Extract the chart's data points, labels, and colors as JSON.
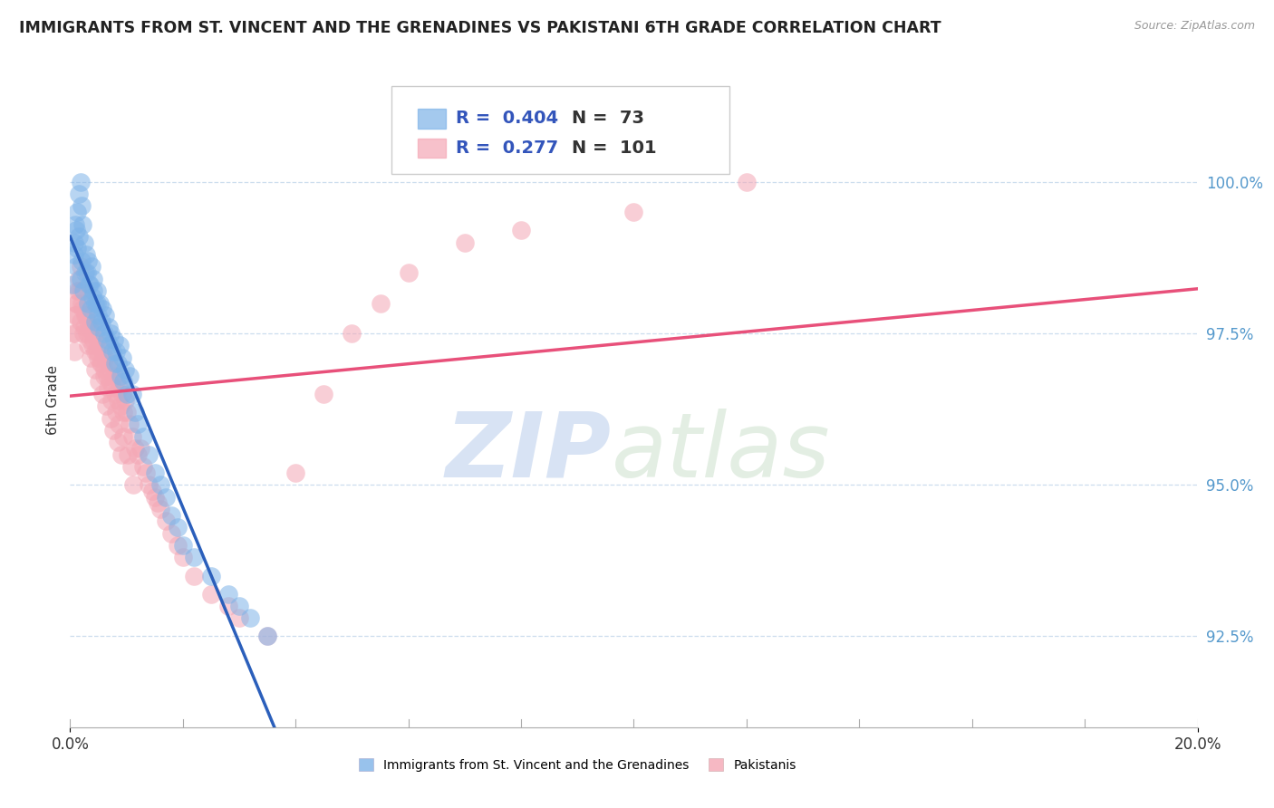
{
  "title": "IMMIGRANTS FROM ST. VINCENT AND THE GRENADINES VS PAKISTANI 6TH GRADE CORRELATION CHART",
  "source": "Source: ZipAtlas.com",
  "ylabel": "6th Grade",
  "y_ticks": [
    92.5,
    95.0,
    97.5,
    100.0
  ],
  "y_tick_labels": [
    "92.5%",
    "95.0%",
    "97.5%",
    "100.0%"
  ],
  "x_lim": [
    0.0,
    20.0
  ],
  "y_lim": [
    91.0,
    101.8
  ],
  "blue_color": "#7EB3E8",
  "blue_edge_color": "#5B9BD5",
  "pink_color": "#F4A7B5",
  "pink_edge_color": "#E87B9A",
  "blue_line_color": "#2B5FBB",
  "pink_line_color": "#E8507A",
  "legend_R_blue": "0.404",
  "legend_N_blue": "73",
  "legend_R_pink": "0.277",
  "legend_N_pink": "101",
  "legend_label_blue": "Immigrants from St. Vincent and the Grenadines",
  "legend_label_pink": "Pakistanis",
  "watermark_zip": "ZIP",
  "watermark_atlas": "atlas",
  "blue_x": [
    0.05,
    0.08,
    0.1,
    0.12,
    0.15,
    0.18,
    0.2,
    0.22,
    0.25,
    0.28,
    0.3,
    0.32,
    0.35,
    0.38,
    0.4,
    0.42,
    0.45,
    0.48,
    0.5,
    0.52,
    0.55,
    0.58,
    0.6,
    0.62,
    0.65,
    0.68,
    0.7,
    0.72,
    0.75,
    0.78,
    0.8,
    0.82,
    0.85,
    0.88,
    0.9,
    0.92,
    0.95,
    0.98,
    1.0,
    1.05,
    1.1,
    1.15,
    1.2,
    1.3,
    1.4,
    1.5,
    1.6,
    1.7,
    1.8,
    1.9,
    2.0,
    2.2,
    2.5,
    2.8,
    3.0,
    3.2,
    3.5,
    0.07,
    0.09,
    0.11,
    0.13,
    0.16,
    0.19,
    0.21,
    0.24,
    0.27,
    0.31,
    0.34,
    0.37,
    0.41,
    0.44,
    0.47,
    0.51
  ],
  "blue_y": [
    98.3,
    98.8,
    99.2,
    99.5,
    99.8,
    100.0,
    99.6,
    99.3,
    99.0,
    98.8,
    98.5,
    98.7,
    98.3,
    98.6,
    98.1,
    98.4,
    98.0,
    98.2,
    97.8,
    98.0,
    97.7,
    97.9,
    97.5,
    97.8,
    97.4,
    97.6,
    97.3,
    97.5,
    97.2,
    97.4,
    97.0,
    97.2,
    97.0,
    97.3,
    96.8,
    97.1,
    96.7,
    96.9,
    96.5,
    96.8,
    96.5,
    96.2,
    96.0,
    95.8,
    95.5,
    95.2,
    95.0,
    94.8,
    94.5,
    94.3,
    94.0,
    93.8,
    93.5,
    93.2,
    93.0,
    92.8,
    92.5,
    99.0,
    99.3,
    98.6,
    98.9,
    99.1,
    98.4,
    98.7,
    98.2,
    98.5,
    98.0,
    98.3,
    97.9,
    98.2,
    97.7,
    98.0,
    97.6
  ],
  "pink_x": [
    0.05,
    0.08,
    0.1,
    0.12,
    0.15,
    0.18,
    0.2,
    0.22,
    0.25,
    0.28,
    0.3,
    0.32,
    0.35,
    0.38,
    0.4,
    0.42,
    0.45,
    0.48,
    0.5,
    0.52,
    0.55,
    0.58,
    0.6,
    0.62,
    0.65,
    0.68,
    0.7,
    0.72,
    0.75,
    0.78,
    0.8,
    0.82,
    0.85,
    0.88,
    0.9,
    0.92,
    0.95,
    0.98,
    1.0,
    1.05,
    1.1,
    1.15,
    1.2,
    1.3,
    1.4,
    1.5,
    1.6,
    1.7,
    1.8,
    1.9,
    2.0,
    2.2,
    2.5,
    2.8,
    3.0,
    3.5,
    4.0,
    4.5,
    5.0,
    5.5,
    6.0,
    7.0,
    8.0,
    10.0,
    12.0,
    0.07,
    0.09,
    0.11,
    0.13,
    0.16,
    0.19,
    0.21,
    0.24,
    0.27,
    0.31,
    0.34,
    0.37,
    0.41,
    0.44,
    0.47,
    0.51,
    0.54,
    0.57,
    0.61,
    0.64,
    0.67,
    0.71,
    0.74,
    0.77,
    0.81,
    0.84,
    0.87,
    0.91,
    0.94,
    1.02,
    1.08,
    1.12,
    1.25,
    1.35,
    1.45,
    1.55
  ],
  "pink_y": [
    97.5,
    97.8,
    98.0,
    98.2,
    98.4,
    98.6,
    98.2,
    97.9,
    97.6,
    97.8,
    97.5,
    97.7,
    97.4,
    97.6,
    97.3,
    97.5,
    97.2,
    97.4,
    97.1,
    97.3,
    97.0,
    97.2,
    96.9,
    97.1,
    96.8,
    97.0,
    96.7,
    96.9,
    96.6,
    96.8,
    96.5,
    96.7,
    96.4,
    96.6,
    96.3,
    96.5,
    96.2,
    96.4,
    96.2,
    96.0,
    95.8,
    95.6,
    95.5,
    95.3,
    95.0,
    94.8,
    94.6,
    94.4,
    94.2,
    94.0,
    93.8,
    93.5,
    93.2,
    93.0,
    92.8,
    92.5,
    95.2,
    96.5,
    97.5,
    98.0,
    98.5,
    99.0,
    99.2,
    99.5,
    100.0,
    97.2,
    97.5,
    97.8,
    98.0,
    98.2,
    97.7,
    98.0,
    97.5,
    97.8,
    97.3,
    97.6,
    97.1,
    97.4,
    96.9,
    97.2,
    96.7,
    97.0,
    96.5,
    96.8,
    96.3,
    96.6,
    96.1,
    96.4,
    95.9,
    96.2,
    95.7,
    96.0,
    95.5,
    95.8,
    95.5,
    95.3,
    95.0,
    95.6,
    95.2,
    94.9,
    94.7
  ]
}
